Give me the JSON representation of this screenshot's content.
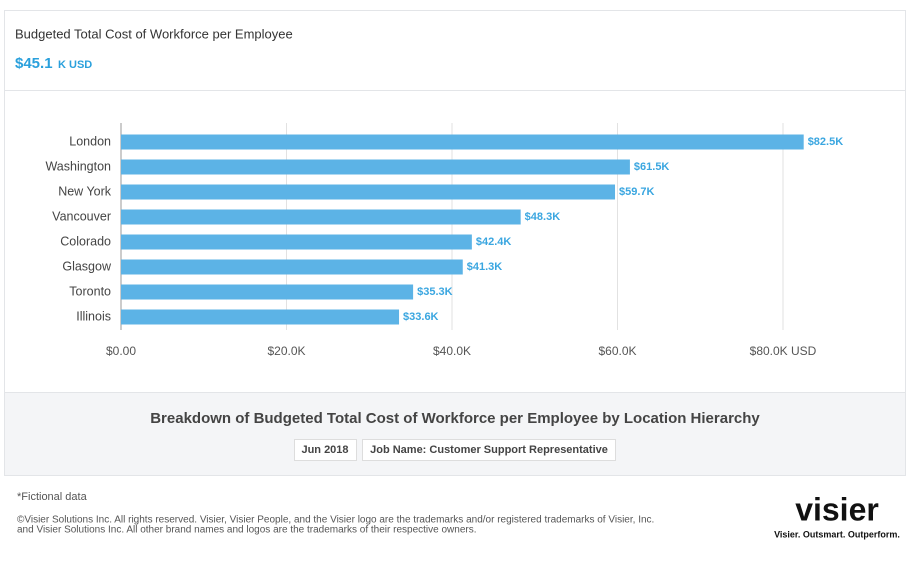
{
  "header": {
    "title": "Budgeted Total Cost of Workforce per Employee",
    "summary_value": "$45.1",
    "summary_unit": "K USD"
  },
  "chart_data": {
    "type": "hbar",
    "color": "#5cb3e6",
    "categories": [
      "London",
      "Washington",
      "New York",
      "Vancouver",
      "Colorado",
      "Glasgow",
      "Toronto",
      "Illinois"
    ],
    "values": [
      82500,
      61500,
      59700,
      48300,
      42400,
      41300,
      35300,
      33600
    ],
    "value_labels": [
      "$82.5K",
      "$61.5K",
      "$59.7K",
      "$48.3K",
      "$42.4K",
      "$41.3K",
      "$35.3K",
      "$33.6K"
    ],
    "xlim": [
      0,
      80000
    ],
    "xticks": [
      {
        "value": 0,
        "label": "$0.00"
      },
      {
        "value": 20000,
        "label": "$20.0K"
      },
      {
        "value": 40000,
        "label": "$40.0K"
      },
      {
        "value": 60000,
        "label": "$60.0K"
      },
      {
        "value": 80000,
        "label": "$80.0K USD"
      }
    ],
    "grid": true
  },
  "footer": {
    "title": "Breakdown of Budgeted Total Cost of Workforce per Employee by Location Hierarchy",
    "filters": [
      "Jun 2018",
      "Job Name: Customer Support Representative"
    ]
  },
  "notes": {
    "fictional": "*Fictional data",
    "disclaimer": [
      "©Visier Solutions Inc. All rights reserved. Visier, Visier People, and the Visier logo are the trademarks and/or registered trademarks of Visier, Inc.",
      "and Visier Solutions Inc. All other brand names and logos are the trademarks of their respective owners."
    ]
  },
  "logo": {
    "text": "visier",
    "tagline": "Visier. Outsmart. Outperform."
  }
}
